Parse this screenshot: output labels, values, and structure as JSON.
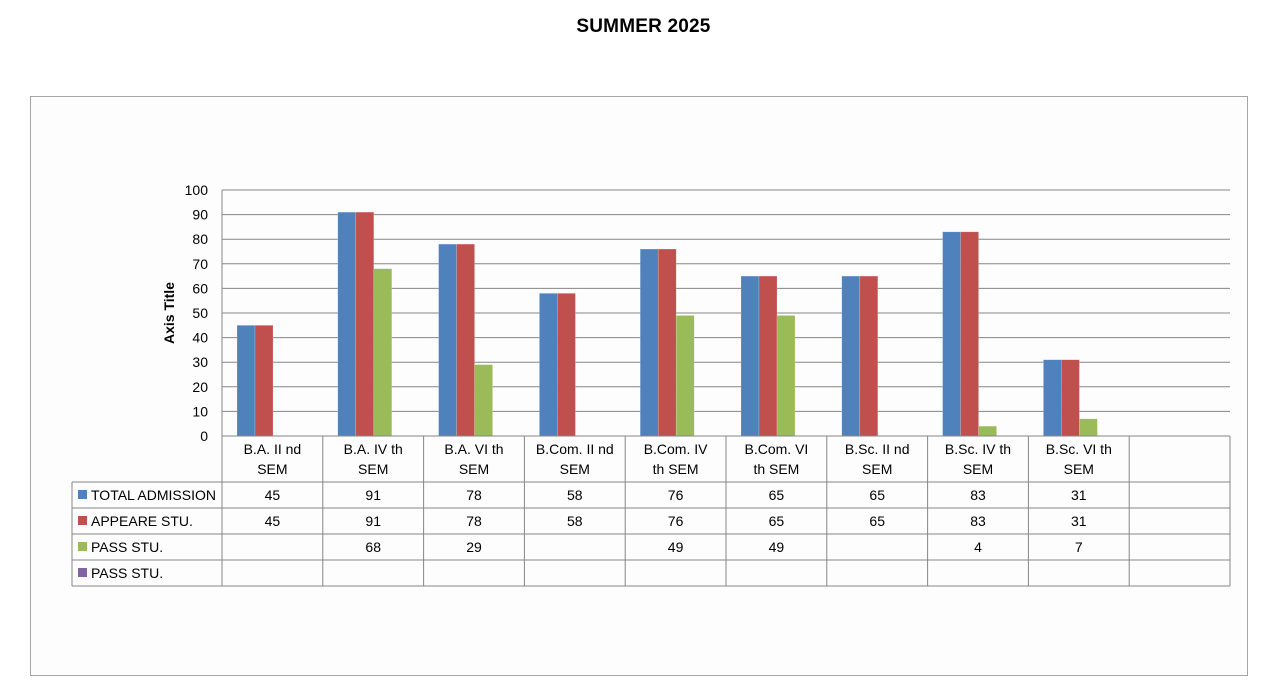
{
  "page": {
    "title": "SUMMER 2025"
  },
  "chart_data": {
    "type": "bar",
    "y_axis_title": "Axis Title",
    "ylim": [
      0,
      100
    ],
    "y_ticks": [
      0,
      10,
      20,
      30,
      40,
      50,
      60,
      70,
      80,
      90,
      100
    ],
    "grid": true,
    "data_table": true,
    "categories": [
      [
        "B.A. II nd",
        "SEM"
      ],
      [
        "B.A. IV th",
        "SEM"
      ],
      [
        "B.A. VI th",
        "SEM"
      ],
      [
        "B.Com. II nd",
        "SEM"
      ],
      [
        "B.Com. IV",
        "th SEM"
      ],
      [
        "B.Com. VI",
        "th SEM"
      ],
      [
        "B.Sc. II nd",
        "SEM"
      ],
      [
        "B.Sc. IV th",
        "SEM"
      ],
      [
        "B.Sc. VI th",
        "SEM"
      ],
      [
        "",
        ""
      ]
    ],
    "series": [
      {
        "name": "TOTAL ADMISSION",
        "color": "#4f81bd",
        "values": [
          45,
          91,
          78,
          58,
          76,
          65,
          65,
          83,
          31,
          null
        ]
      },
      {
        "name": "APPEARE STU.",
        "color": "#c0504d",
        "values": [
          45,
          91,
          78,
          58,
          76,
          65,
          65,
          83,
          31,
          null
        ]
      },
      {
        "name": "PASS STU.",
        "color": "#9bbb59",
        "values": [
          null,
          68,
          29,
          null,
          49,
          49,
          null,
          4,
          7,
          null
        ]
      },
      {
        "name": "PASS STU.",
        "color": "#8064a2",
        "values": [
          null,
          null,
          null,
          null,
          null,
          null,
          null,
          null,
          null,
          null
        ]
      }
    ]
  }
}
